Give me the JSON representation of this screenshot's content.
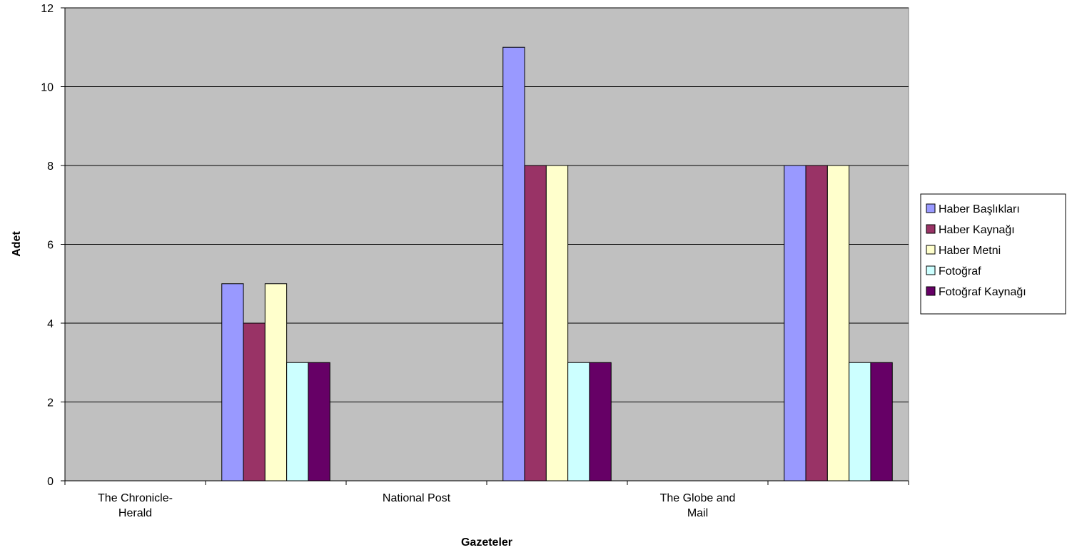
{
  "chart_data": {
    "type": "bar",
    "categories": [
      "The Chronicle-Herald",
      "",
      "National Post",
      "",
      "The Globe and Mail",
      ""
    ],
    "category_label_lines": [
      [
        "The Chronicle-",
        "Herald"
      ],
      [],
      [
        "National Post"
      ],
      [],
      [
        "The Globe and",
        "Mail"
      ],
      []
    ],
    "series": [
      {
        "name": "Haber Başlıkları",
        "color": "#9999ff",
        "values": [
          0,
          5,
          0,
          11,
          0,
          8
        ]
      },
      {
        "name": "Haber Kaynağı",
        "color": "#993366",
        "values": [
          0,
          4,
          0,
          8,
          0,
          8
        ]
      },
      {
        "name": "Haber Metni",
        "color": "#ffffcc",
        "values": [
          0,
          5,
          0,
          8,
          0,
          8
        ]
      },
      {
        "name": "Fotoğraf",
        "color": "#ccffff",
        "values": [
          0,
          3,
          0,
          3,
          0,
          3
        ]
      },
      {
        "name": "Fotoğraf Kaynağı",
        "color": "#660066",
        "values": [
          0,
          3,
          0,
          3,
          0,
          3
        ]
      }
    ],
    "xlabel": "Gazeteler",
    "ylabel": "Adet",
    "ylim": [
      0,
      12
    ],
    "yticks": [
      0,
      2,
      4,
      6,
      8,
      10,
      12
    ],
    "grid": true,
    "plot_background": "#c0c0c0",
    "legend_position": "right"
  }
}
